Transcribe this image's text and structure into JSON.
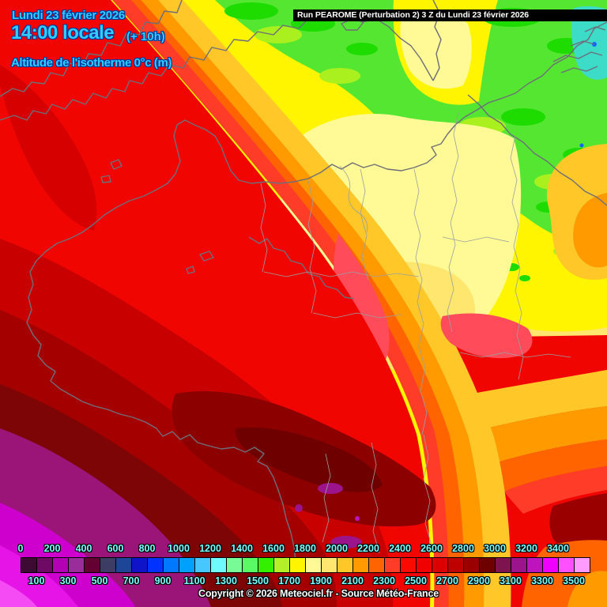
{
  "header": {
    "date": "Lundi 23 février 2026",
    "time": "14:00 locale",
    "utc_offset": "(+ 10h)",
    "parameter": "Altitude de l'isotherme 0°c (m)"
  },
  "run_banner": {
    "text": "Run PEAROME (Perturbation 2) 3 Z du Lundi 23 février 2026"
  },
  "footer": {
    "copyright": "Copyright © 2026 Meteociel.fr - Source Météo-France"
  },
  "colors": {
    "header_text": "#33CCFF",
    "header_outline": "#0038A0",
    "banner_background": "#000000",
    "banner_text": "#FFFFFF",
    "legend_label_text": "#7DFFFF",
    "copyright_text": "#FFFFFF"
  },
  "legend": {
    "unit": "m",
    "top_labels": [
      "0",
      "200",
      "400",
      "600",
      "800",
      "1000",
      "1200",
      "1400",
      "1600",
      "1800",
      "2000",
      "2200",
      "2400",
      "2600",
      "2800",
      "3000",
      "3200",
      "3400"
    ],
    "bottom_labels": [
      "100",
      "300",
      "500",
      "700",
      "900",
      "1100",
      "1300",
      "1500",
      "1700",
      "1900",
      "2100",
      "2300",
      "2500",
      "2700",
      "2900",
      "3100",
      "3300",
      "3500"
    ],
    "cell_colors": [
      "#3C0A32",
      "#6E0A64",
      "#B400B4",
      "#9B2D9B",
      "#640032",
      "#3C3C64",
      "#1E4696",
      "#0F14C8",
      "#0032FF",
      "#0078FF",
      "#00A0FF",
      "#46C8FF",
      "#6EFAFF",
      "#78FA96",
      "#5AFA64",
      "#32F000",
      "#B4F028",
      "#FFF500",
      "#FFFA96",
      "#FFE66E",
      "#FFC828",
      "#FF9B00",
      "#FF6400",
      "#FF3C28",
      "#FA0A00",
      "#F00000",
      "#DC0000",
      "#BE0000",
      "#9B0000",
      "#6E0000",
      "#7D1450",
      "#9B148C",
      "#BE14BE",
      "#F000FF",
      "#FF50FF",
      "#FF9BFF"
    ]
  }
}
